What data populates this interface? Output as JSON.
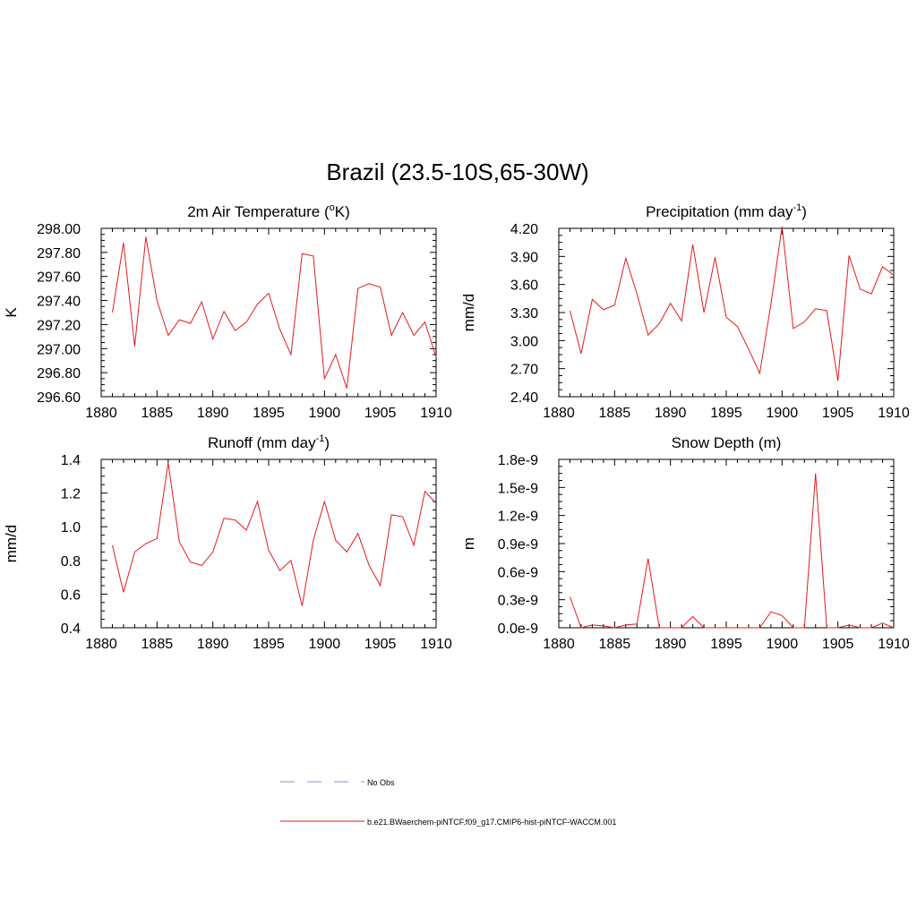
{
  "figure": {
    "title": "Brazil (23.5-10S,65-30W)"
  },
  "colors": {
    "model_line": "#e41a1c",
    "obs_line": "#9ea7d8",
    "axis": "#000000"
  },
  "legend": {
    "obs_label": "No Obs",
    "model_label": "b.e21.BWaerchem-piNTCF.f09_g17.CMIP6-hist-piNTCF-WACCM.001"
  },
  "chart_data": [
    {
      "type": "line",
      "title_main": "2m Air Temperature (",
      "title_sup": "o",
      "title_end": "K)",
      "ylabel": "K",
      "xlim": [
        1880,
        1910
      ],
      "ylim": [
        296.6,
        298.0
      ],
      "x_ticks": [
        "1880",
        "1885",
        "1890",
        "1895",
        "1900",
        "1905",
        "1910"
      ],
      "y_ticks": [
        "296.60",
        "296.80",
        "297.00",
        "297.20",
        "297.40",
        "297.60",
        "297.80",
        "298.00"
      ],
      "x": [
        1881,
        1882,
        1883,
        1884,
        1885,
        1886,
        1887,
        1888,
        1889,
        1890,
        1891,
        1892,
        1893,
        1894,
        1895,
        1896,
        1897,
        1898,
        1899,
        1900,
        1901,
        1902,
        1903,
        1904,
        1905,
        1906,
        1907,
        1908,
        1909,
        1910
      ],
      "values": [
        297.3,
        297.88,
        297.02,
        297.93,
        297.4,
        297.11,
        297.24,
        297.21,
        297.39,
        297.08,
        297.31,
        297.15,
        297.22,
        297.37,
        297.46,
        297.16,
        296.95,
        297.79,
        297.77,
        296.75,
        296.95,
        296.67,
        297.5,
        297.54,
        297.51,
        297.11,
        297.3,
        297.11,
        297.22,
        296.93
      ]
    },
    {
      "type": "line",
      "title_main": "Precipitation (mm day",
      "title_sup": "-1",
      "title_end": ")",
      "ylabel": "mm/d",
      "xlim": [
        1880,
        1910
      ],
      "ylim": [
        2.4,
        4.2
      ],
      "x_ticks": [
        "1880",
        "1885",
        "1890",
        "1895",
        "1900",
        "1905",
        "1910"
      ],
      "y_ticks": [
        "2.40",
        "2.70",
        "3.00",
        "3.30",
        "3.60",
        "3.90",
        "4.20"
      ],
      "x": [
        1881,
        1882,
        1883,
        1884,
        1885,
        1886,
        1887,
        1888,
        1889,
        1890,
        1891,
        1892,
        1893,
        1894,
        1895,
        1896,
        1897,
        1898,
        1899,
        1900,
        1901,
        1902,
        1903,
        1904,
        1905,
        1906,
        1907,
        1908,
        1909,
        1910
      ],
      "values": [
        3.32,
        2.86,
        3.44,
        3.33,
        3.38,
        3.88,
        3.5,
        3.06,
        3.18,
        3.4,
        3.21,
        4.03,
        3.3,
        3.89,
        3.25,
        3.15,
        2.91,
        2.65,
        3.39,
        4.22,
        3.13,
        3.2,
        3.34,
        3.32,
        2.57,
        3.91,
        3.55,
        3.5,
        3.79,
        3.7
      ]
    },
    {
      "type": "line",
      "title_main": "Runoff (mm day",
      "title_sup": "-1",
      "title_end": ")",
      "ylabel": "mm/d",
      "xlim": [
        1880,
        1910
      ],
      "ylim": [
        0.4,
        1.4
      ],
      "x_ticks": [
        "1880",
        "1885",
        "1890",
        "1895",
        "1900",
        "1905",
        "1910"
      ],
      "y_ticks": [
        "0.4",
        "0.6",
        "0.8",
        "1.0",
        "1.2",
        "1.4"
      ],
      "x": [
        1881,
        1882,
        1883,
        1884,
        1885,
        1886,
        1887,
        1888,
        1889,
        1890,
        1891,
        1892,
        1893,
        1894,
        1895,
        1896,
        1897,
        1898,
        1899,
        1900,
        1901,
        1902,
        1903,
        1904,
        1905,
        1906,
        1907,
        1908,
        1909,
        1910
      ],
      "values": [
        0.89,
        0.61,
        0.85,
        0.9,
        0.93,
        1.38,
        0.91,
        0.79,
        0.77,
        0.85,
        1.05,
        1.04,
        0.98,
        1.15,
        0.86,
        0.74,
        0.8,
        0.53,
        0.92,
        1.15,
        0.92,
        0.85,
        0.96,
        0.77,
        0.65,
        1.07,
        1.06,
        0.89,
        1.21,
        1.14
      ]
    },
    {
      "type": "line",
      "title_main": "Snow Depth (m)",
      "title_sup": "",
      "title_end": "",
      "ylabel": "m",
      "xlim": [
        1880,
        1910
      ],
      "ylim": [
        0.0,
        1.8
      ],
      "x_ticks": [
        "1880",
        "1885",
        "1890",
        "1895",
        "1900",
        "1905",
        "1910"
      ],
      "y_ticks": [
        "0.0e-9",
        "0.3e-9",
        "0.6e-9",
        "0.9e-9",
        "1.2e-9",
        "1.5e-9",
        "1.8e-9"
      ],
      "x": [
        1881,
        1882,
        1883,
        1884,
        1885,
        1886,
        1887,
        1888,
        1889,
        1890,
        1891,
        1892,
        1893,
        1894,
        1895,
        1896,
        1897,
        1898,
        1899,
        1900,
        1901,
        1902,
        1903,
        1904,
        1905,
        1906,
        1907,
        1908,
        1909,
        1910
      ],
      "values": [
        0.33,
        0.0,
        0.03,
        0.02,
        0.0,
        0.03,
        0.04,
        0.74,
        0.0,
        0.0,
        0.0,
        0.12,
        0.0,
        0.0,
        0.0,
        0.0,
        0.0,
        0.0,
        0.17,
        0.13,
        0.0,
        0.0,
        1.65,
        0.0,
        0.0,
        0.03,
        0.0,
        0.0,
        0.05,
        0.0
      ]
    }
  ]
}
